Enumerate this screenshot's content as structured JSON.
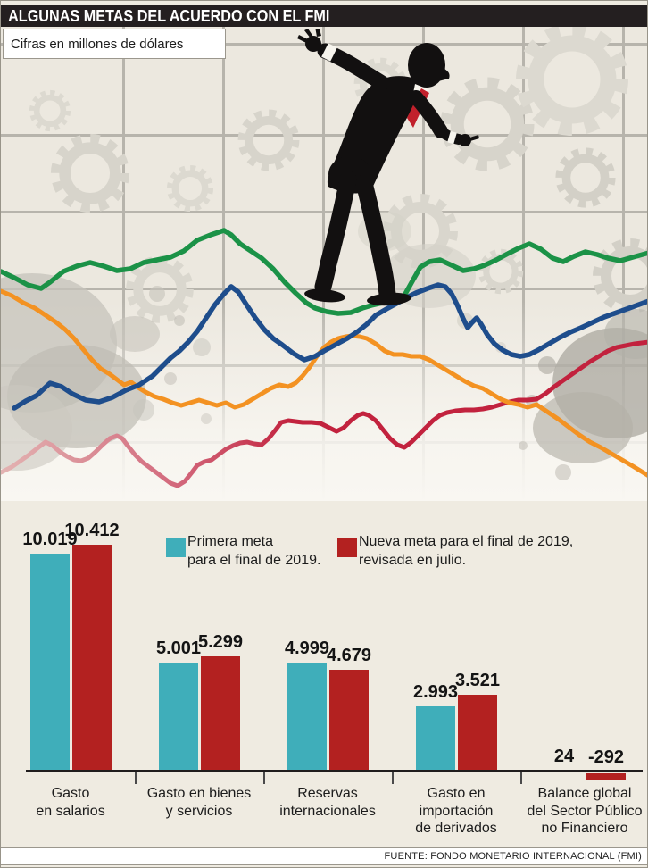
{
  "header": {
    "title": "ALGUNAS METAS DEL ACUERDO CON EL FMI"
  },
  "subtitle": "Cifras en millones de dólares",
  "legend": {
    "first": {
      "label": "Primera meta\npara el final de 2019.",
      "color": "#3FAEBA"
    },
    "revised": {
      "label": "Nueva meta para el final de 2019,\nrevisada en julio.",
      "color": "#B32120"
    }
  },
  "chart_data": {
    "type": "bar",
    "categories": [
      "Gasto\nen salarios",
      "Gasto en bienes\ny servicios",
      "Reservas\ninternacionales",
      "Gasto en\nimportación\nde derivados",
      "Balance global\ndel Sector Público\nno Financiero"
    ],
    "series": [
      {
        "name": "Primera meta para el final de 2019.",
        "color": "#3FAEBA",
        "values": [
          10019,
          5001,
          4999,
          2993,
          24
        ]
      },
      {
        "name": "Nueva meta para el final de 2019, revisada en julio.",
        "color": "#B32120",
        "values": [
          10412,
          5299,
          4679,
          3521,
          -292
        ]
      }
    ],
    "value_labels": [
      [
        "10.019",
        "10.412"
      ],
      [
        "5.001",
        "5.299"
      ],
      [
        "4.999",
        "4.679"
      ],
      [
        "2.993",
        "3.521"
      ],
      [
        "24",
        "-292"
      ]
    ],
    "unit": "millones de dólares",
    "baseline": 0,
    "legend_position": "top",
    "grid": false
  },
  "illustration": {
    "figure": "businessman balancing on tightrope line",
    "motifs": [
      "gears",
      "ink splatters",
      "grid background",
      "trend lines"
    ],
    "line_colors": {
      "green": "#1B9247",
      "blue": "#1E4D8C",
      "orange": "#F39222",
      "red": "#C2223E"
    }
  },
  "footer": {
    "source": "FUENTE: FONDO MONETARIO INTERNACIONAL (FMI)"
  }
}
